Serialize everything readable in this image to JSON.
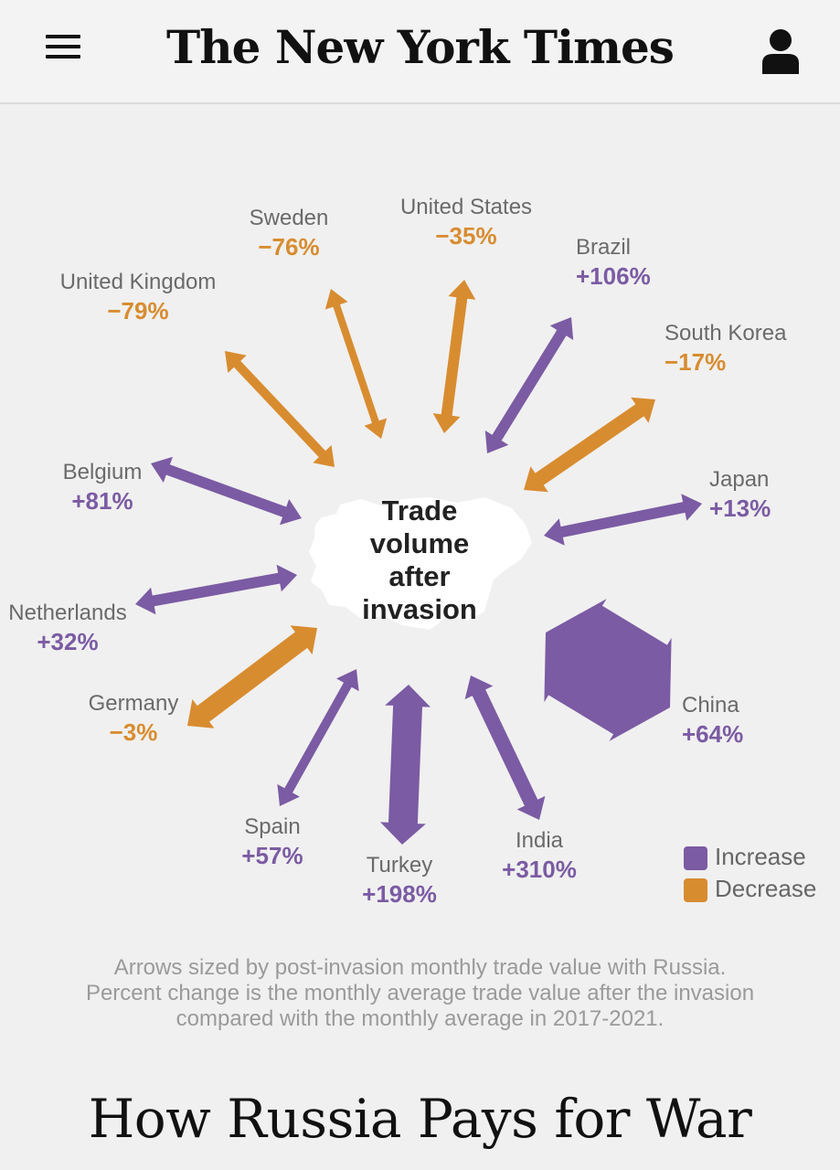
{
  "header": {
    "logo": "The New York Times",
    "menu_icon": "hamburger-menu-icon",
    "user_icon": "user-account-icon"
  },
  "colors": {
    "increase": "#7b5ba3",
    "decrease": "#d88c30",
    "label": "#6a6a6a"
  },
  "chart_data": {
    "type": "radial-arrows",
    "center_label": [
      "Trade",
      "volume",
      "after",
      "invasion"
    ],
    "legend": [
      {
        "label": "Increase",
        "color": "#7b5ba3"
      },
      {
        "label": "Decrease",
        "color": "#d88c30"
      }
    ],
    "series": [
      {
        "country": "United States",
        "change": "−35%",
        "value": -35,
        "direction": "Decrease"
      },
      {
        "country": "Brazil",
        "change": "+106%",
        "value": 106,
        "direction": "Increase"
      },
      {
        "country": "South Korea",
        "change": "−17%",
        "value": -17,
        "direction": "Decrease"
      },
      {
        "country": "Japan",
        "change": "+13%",
        "value": 13,
        "direction": "Increase"
      },
      {
        "country": "China",
        "change": "+64%",
        "value": 64,
        "direction": "Increase"
      },
      {
        "country": "India",
        "change": "+310%",
        "value": 310,
        "direction": "Increase"
      },
      {
        "country": "Turkey",
        "change": "+198%",
        "value": 198,
        "direction": "Increase"
      },
      {
        "country": "Spain",
        "change": "+57%",
        "value": 57,
        "direction": "Increase"
      },
      {
        "country": "Germany",
        "change": "−3%",
        "value": -3,
        "direction": "Decrease"
      },
      {
        "country": "Netherlands",
        "change": "+32%",
        "value": 32,
        "direction": "Increase"
      },
      {
        "country": "Belgium",
        "change": "+81%",
        "value": 81,
        "direction": "Increase"
      },
      {
        "country": "United Kingdom",
        "change": "−79%",
        "value": -79,
        "direction": "Decrease"
      },
      {
        "country": "Sweden",
        "change": "−76%",
        "value": -76,
        "direction": "Decrease"
      }
    ]
  },
  "footnote": [
    "Arrows sized by post-invasion monthly trade value with Russia.",
    "Percent change is the monthly average trade value after the invasion",
    "compared with the monthly average in 2017-2021."
  ],
  "headline": "How Russia Pays for War"
}
